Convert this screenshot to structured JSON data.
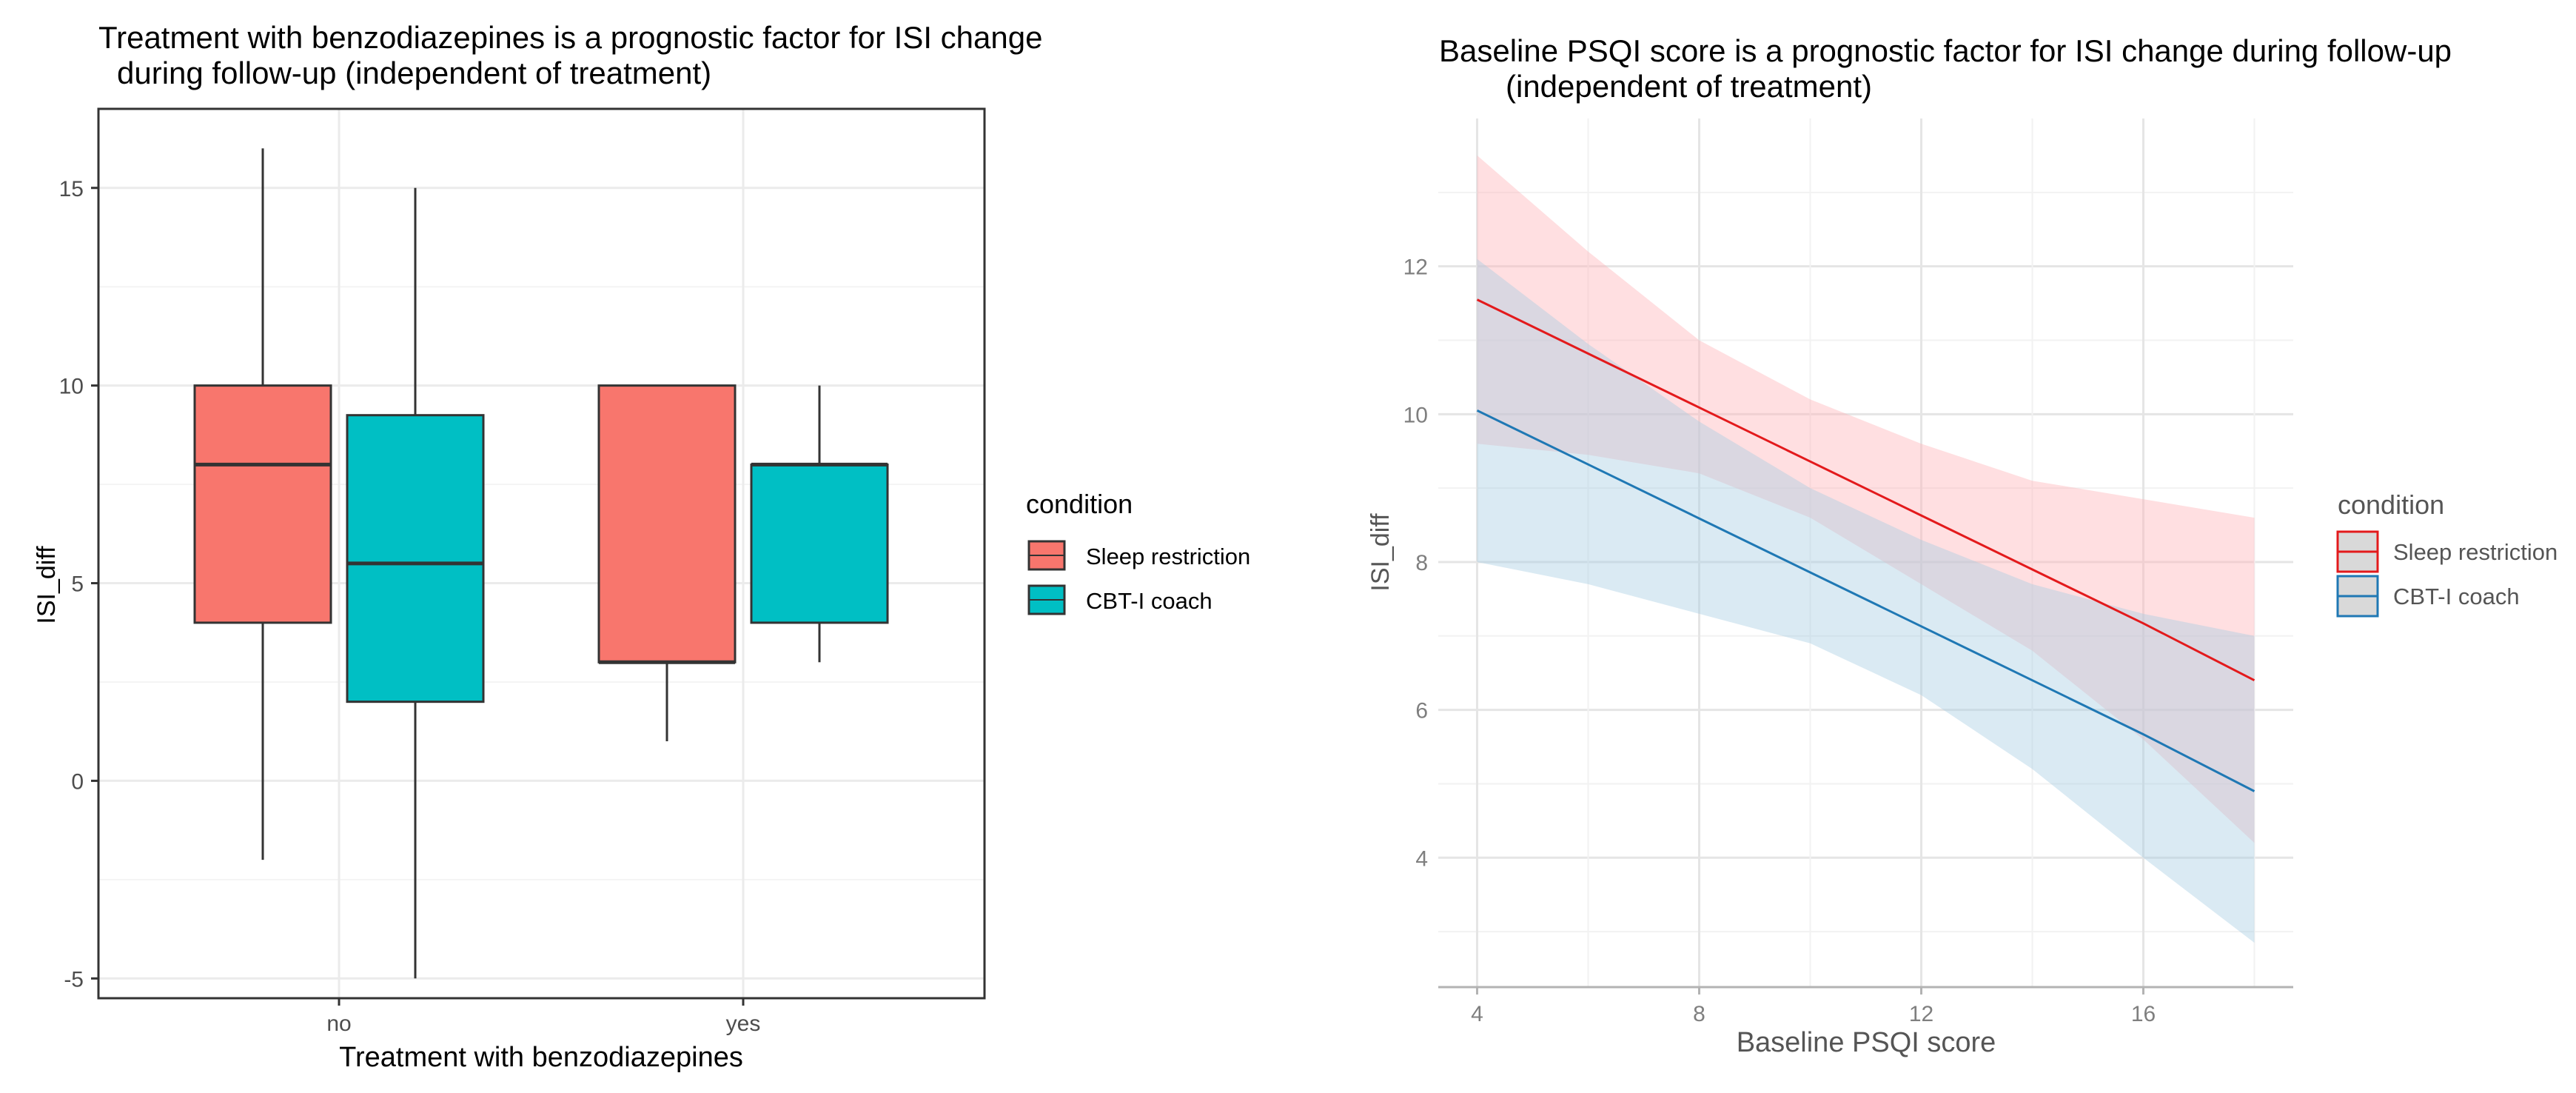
{
  "chart_data": [
    {
      "type": "boxplot",
      "title_lines": [
        "Treatment with benzodiazepines is a prognostic factor for ISI change",
        "during follow-up (independent of treatment)"
      ],
      "xlabel": "Treatment with benzodiazepines",
      "ylabel": "ISI_diff",
      "ylim": [
        -5.5,
        17.0
      ],
      "yticks": [
        -5,
        0,
        5,
        10,
        15
      ],
      "ytick_labels": [
        "-5",
        "0",
        "5",
        "10",
        "15"
      ],
      "categories": [
        "no",
        "yes"
      ],
      "legend": {
        "title": "condition",
        "entries": [
          {
            "label": "Sleep restriction",
            "color": "#F8766D"
          },
          {
            "label": "CBT-I coach",
            "color": "#00BFC4"
          }
        ]
      },
      "series": [
        {
          "name": "Sleep restriction",
          "color": "#F8766D",
          "boxes": [
            {
              "category": "no",
              "min": -2,
              "q1": 4,
              "median": 8,
              "q3": 10,
              "max": 16
            },
            {
              "category": "yes",
              "min": 1,
              "q1": 3,
              "median": 3,
              "q3": 10,
              "max": 10
            }
          ]
        },
        {
          "name": "CBT-I coach",
          "color": "#00BFC4",
          "boxes": [
            {
              "category": "no",
              "min": -5,
              "q1": 2,
              "median": 5.5,
              "q3": 9.25,
              "max": 15
            },
            {
              "category": "yes",
              "min": 3,
              "q1": 4,
              "median": 8,
              "q3": 8,
              "max": 10
            }
          ]
        }
      ]
    },
    {
      "type": "line",
      "title_lines": [
        "Baseline PSQI score is a prognostic factor for ISI change during follow-up",
        "(independent of treatment)"
      ],
      "xlabel": "Baseline PSQI score",
      "ylabel": "ISI_diff",
      "xlim": [
        3.3,
        18.7
      ],
      "ylim": [
        2.25,
        14.0
      ],
      "xticks": [
        4,
        8,
        12,
        16
      ],
      "xtick_labels": [
        "4",
        "8",
        "12",
        "16"
      ],
      "yticks": [
        4,
        6,
        8,
        10,
        12
      ],
      "ytick_labels": [
        "4",
        "6",
        "8",
        "10",
        "12"
      ],
      "legend": {
        "title": "condition",
        "entries": [
          {
            "label": "Sleep restriction",
            "color": "#E31A1C"
          },
          {
            "label": "CBT-I coach",
            "color": "#1F78B4"
          }
        ]
      },
      "series": [
        {
          "name": "Sleep restriction",
          "line_color": "#E31A1C",
          "band_color": "#FFB3B8",
          "x": [
            4,
            6,
            8,
            10,
            12,
            14,
            16,
            18
          ],
          "y": [
            11.55,
            10.82,
            10.09,
            9.36,
            8.63,
            7.9,
            7.17,
            6.4
          ],
          "lower": [
            9.6,
            9.45,
            9.2,
            8.6,
            7.7,
            6.8,
            5.6,
            4.2
          ],
          "upper": [
            13.5,
            12.2,
            11.0,
            10.2,
            9.6,
            9.1,
            8.85,
            8.6
          ]
        },
        {
          "name": "CBT-I coach",
          "line_color": "#1F78B4",
          "band_color": "#A6CEE3",
          "x": [
            4,
            6,
            8,
            10,
            12,
            14,
            16,
            18
          ],
          "y": [
            10.05,
            9.32,
            8.59,
            7.86,
            7.13,
            6.4,
            5.67,
            4.9
          ],
          "lower": [
            8.0,
            7.7,
            7.3,
            6.9,
            6.2,
            5.2,
            4.0,
            2.85
          ],
          "upper": [
            12.1,
            10.95,
            9.9,
            9.0,
            8.3,
            7.7,
            7.3,
            7.0
          ]
        }
      ]
    }
  ]
}
